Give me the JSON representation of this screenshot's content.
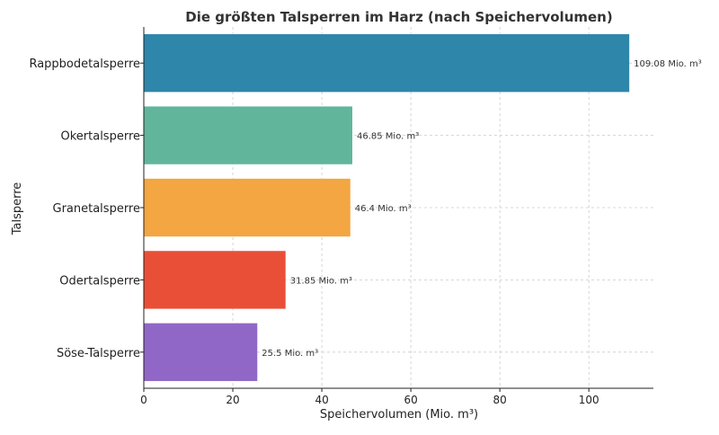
{
  "chart_data": {
    "type": "bar",
    "orientation": "horizontal",
    "title": "Die größten Talsperren im Harz (nach Speichervolumen)",
    "xlabel": "Speichervolumen (Mio. m³)",
    "ylabel": "Talsperre",
    "categories": [
      "Rappbodetalsperre",
      "Okertalsperre",
      "Granetalsperre",
      "Odertalsperre",
      "Söse-Talsperre"
    ],
    "values": [
      109.08,
      46.85,
      46.4,
      31.85,
      25.5
    ],
    "data_labels": [
      "109.08 Mio. m³",
      "46.85 Mio. m³",
      "46.4 Mio. m³",
      "31.85 Mio. m³",
      "25.5 Mio. m³"
    ],
    "colors": [
      "#2e86ab",
      "#61b59b",
      "#f3a641",
      "#e94f37",
      "#9067c6"
    ],
    "xlim": [
      0,
      114.5
    ],
    "xticks": [
      0,
      20,
      40,
      60,
      80,
      100
    ],
    "xtick_labels": [
      "0",
      "20",
      "40",
      "60",
      "80",
      "100"
    ],
    "grid": true,
    "legend": "none"
  }
}
